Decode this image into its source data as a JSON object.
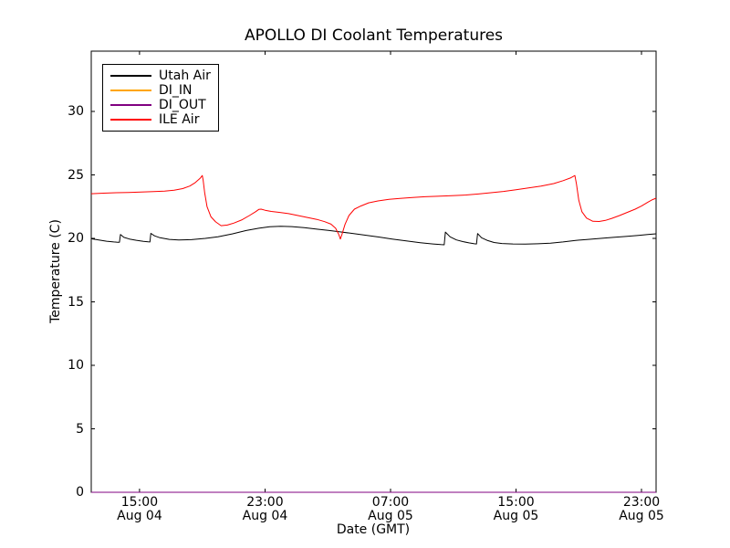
{
  "window": {
    "background": "#ffffff"
  },
  "chart_data": {
    "type": "line",
    "title": "APOLLO DI Coolant Temperatures",
    "xlabel": "Date (GMT)",
    "ylabel": "Temperature (C)",
    "x_unit_note": "hours since Aug 04 00:00 GMT",
    "xlim": [
      11.92,
      47.93
    ],
    "ylim": [
      0,
      34.75
    ],
    "grid": false,
    "legend_position": "upper left",
    "axis_color": "#000000",
    "tick_length": 4,
    "yticks": [
      0,
      5,
      10,
      15,
      20,
      25,
      30
    ],
    "xticks": [
      {
        "value": 15,
        "time": "15:00",
        "date": "Aug 04"
      },
      {
        "value": 23,
        "time": "23:00",
        "date": "Aug 04"
      },
      {
        "value": 31,
        "time": "07:00",
        "date": "Aug 05"
      },
      {
        "value": 39,
        "time": "15:00",
        "date": "Aug 05"
      },
      {
        "value": 47,
        "time": "23:00",
        "date": "Aug 05"
      }
    ],
    "series": [
      {
        "name": "Utah Air",
        "color": "#000000",
        "points": [
          [
            11.92,
            19.97
          ],
          [
            12.4,
            19.88
          ],
          [
            12.9,
            19.78
          ],
          [
            13.35,
            19.72
          ],
          [
            13.6,
            19.7
          ],
          [
            13.72,
            19.7
          ],
          [
            13.78,
            20.3
          ],
          [
            14.0,
            20.08
          ],
          [
            14.35,
            19.95
          ],
          [
            14.8,
            19.85
          ],
          [
            15.25,
            19.77
          ],
          [
            15.55,
            19.73
          ],
          [
            15.66,
            19.72
          ],
          [
            15.72,
            20.4
          ],
          [
            15.95,
            20.2
          ],
          [
            16.3,
            20.05
          ],
          [
            16.9,
            19.92
          ],
          [
            17.5,
            19.88
          ],
          [
            18.3,
            19.9
          ],
          [
            19.2,
            20.0
          ],
          [
            20.0,
            20.12
          ],
          [
            20.9,
            20.35
          ],
          [
            21.8,
            20.62
          ],
          [
            22.6,
            20.8
          ],
          [
            23.3,
            20.92
          ],
          [
            24.0,
            20.95
          ],
          [
            24.7,
            20.93
          ],
          [
            25.5,
            20.85
          ],
          [
            26.3,
            20.73
          ],
          [
            27.1,
            20.62
          ],
          [
            27.9,
            20.5
          ],
          [
            28.7,
            20.37
          ],
          [
            29.5,
            20.23
          ],
          [
            30.3,
            20.1
          ],
          [
            31.1,
            19.95
          ],
          [
            32.0,
            19.8
          ],
          [
            32.9,
            19.66
          ],
          [
            33.7,
            19.56
          ],
          [
            34.2,
            19.51
          ],
          [
            34.42,
            19.5
          ],
          [
            34.5,
            20.5
          ],
          [
            34.8,
            20.12
          ],
          [
            35.2,
            19.88
          ],
          [
            35.6,
            19.75
          ],
          [
            36.0,
            19.65
          ],
          [
            36.35,
            19.58
          ],
          [
            36.48,
            19.56
          ],
          [
            36.55,
            20.38
          ],
          [
            36.8,
            20.05
          ],
          [
            37.15,
            19.85
          ],
          [
            37.6,
            19.68
          ],
          [
            38.1,
            19.6
          ],
          [
            38.8,
            19.56
          ],
          [
            39.6,
            19.55
          ],
          [
            40.4,
            19.58
          ],
          [
            41.2,
            19.63
          ],
          [
            42.0,
            19.72
          ],
          [
            42.8,
            19.84
          ],
          [
            43.6,
            19.92
          ],
          [
            44.4,
            20.0
          ],
          [
            45.2,
            20.08
          ],
          [
            46.0,
            20.15
          ],
          [
            46.8,
            20.24
          ],
          [
            47.4,
            20.3
          ],
          [
            47.93,
            20.36
          ]
        ]
      },
      {
        "name": "DI_IN",
        "color": "#ffa500",
        "points": [
          [
            11.92,
            0
          ],
          [
            47.93,
            0
          ]
        ]
      },
      {
        "name": "DI_OUT",
        "color": "#800080",
        "points": [
          [
            11.92,
            0
          ],
          [
            47.93,
            0
          ]
        ]
      },
      {
        "name": "ILE Air",
        "color": "#ff0000",
        "points": [
          [
            11.92,
            23.52
          ],
          [
            12.7,
            23.56
          ],
          [
            13.5,
            23.6
          ],
          [
            14.3,
            23.62
          ],
          [
            15.1,
            23.65
          ],
          [
            15.9,
            23.69
          ],
          [
            16.6,
            23.73
          ],
          [
            17.2,
            23.8
          ],
          [
            17.75,
            23.92
          ],
          [
            18.2,
            24.12
          ],
          [
            18.55,
            24.4
          ],
          [
            18.85,
            24.72
          ],
          [
            19.0,
            24.95
          ],
          [
            19.05,
            24.6
          ],
          [
            19.15,
            23.6
          ],
          [
            19.3,
            22.5
          ],
          [
            19.55,
            21.7
          ],
          [
            19.85,
            21.3
          ],
          [
            20.2,
            21.0
          ],
          [
            20.6,
            21.05
          ],
          [
            21.0,
            21.2
          ],
          [
            21.5,
            21.45
          ],
          [
            22.0,
            21.8
          ],
          [
            22.4,
            22.1
          ],
          [
            22.6,
            22.28
          ],
          [
            22.75,
            22.3
          ],
          [
            23.0,
            22.22
          ],
          [
            23.4,
            22.12
          ],
          [
            23.9,
            22.05
          ],
          [
            24.5,
            21.95
          ],
          [
            25.1,
            21.8
          ],
          [
            25.7,
            21.65
          ],
          [
            26.3,
            21.5
          ],
          [
            26.8,
            21.32
          ],
          [
            27.2,
            21.12
          ],
          [
            27.5,
            20.8
          ],
          [
            27.7,
            20.3
          ],
          [
            27.8,
            19.95
          ],
          [
            27.9,
            20.3
          ],
          [
            28.1,
            21.1
          ],
          [
            28.35,
            21.8
          ],
          [
            28.7,
            22.3
          ],
          [
            29.1,
            22.55
          ],
          [
            29.6,
            22.8
          ],
          [
            30.2,
            22.95
          ],
          [
            30.9,
            23.07
          ],
          [
            31.6,
            23.15
          ],
          [
            32.4,
            23.22
          ],
          [
            33.2,
            23.28
          ],
          [
            34.0,
            23.32
          ],
          [
            34.9,
            23.36
          ],
          [
            35.8,
            23.42
          ],
          [
            36.6,
            23.5
          ],
          [
            37.4,
            23.6
          ],
          [
            38.2,
            23.7
          ],
          [
            39.0,
            23.83
          ],
          [
            39.8,
            23.97
          ],
          [
            40.6,
            24.12
          ],
          [
            41.4,
            24.32
          ],
          [
            42.0,
            24.55
          ],
          [
            42.5,
            24.78
          ],
          [
            42.75,
            24.95
          ],
          [
            42.85,
            24.3
          ],
          [
            43.0,
            23.0
          ],
          [
            43.2,
            22.1
          ],
          [
            43.5,
            21.6
          ],
          [
            43.9,
            21.35
          ],
          [
            44.3,
            21.33
          ],
          [
            44.7,
            21.42
          ],
          [
            45.1,
            21.58
          ],
          [
            45.6,
            21.8
          ],
          [
            46.1,
            22.05
          ],
          [
            46.6,
            22.3
          ],
          [
            47.0,
            22.55
          ],
          [
            47.4,
            22.85
          ],
          [
            47.7,
            23.05
          ],
          [
            47.93,
            23.17
          ]
        ]
      }
    ]
  }
}
